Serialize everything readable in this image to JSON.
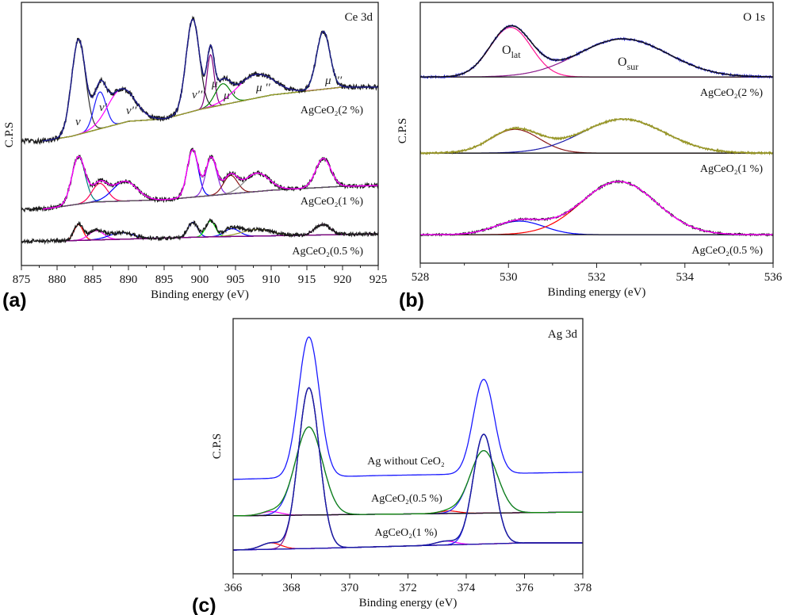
{
  "chart_data": [
    {
      "type": "line",
      "panel_label": "(a)",
      "title": "Ce 3d",
      "xlabel": "Binding energy (eV)",
      "ylabel": "C.P.S",
      "xlim": [
        875,
        925
      ],
      "xticks": [
        "875",
        "880",
        "885",
        "890",
        "895",
        "900",
        "905",
        "910",
        "915",
        "920",
        "925"
      ],
      "y_units": "arbitrary",
      "grid": false,
      "annotations": [
        {
          "text": "ν"
        },
        {
          "text": "ν′"
        },
        {
          "text": "ν′′"
        },
        {
          "text": "ν′′′"
        },
        {
          "text": "μ"
        },
        {
          "text": "μ ′"
        },
        {
          "text": "μ ′′"
        },
        {
          "text": "μ ′′′"
        }
      ],
      "spectra": [
        {
          "label": "AgCeO₂(2 %)",
          "data_color": "#1a1a1a",
          "envelope_color": "#1c1c8c",
          "background_color": "#9c9a2a",
          "noise": 0.9,
          "fit_range": [
            878,
            925
          ],
          "background": [
            [
              878,
              47.3
            ],
            [
              882,
              49.1
            ],
            [
              890,
              54.8
            ],
            [
              895,
              55.7
            ],
            [
              900,
              59.3
            ],
            [
              910,
              64.8
            ],
            [
              915,
              66.3
            ],
            [
              920,
              67.8
            ],
            [
              925,
              67.8
            ]
          ],
          "peaks": [
            {
              "center": 883.0,
              "height": 36,
              "fwhm": 2.3,
              "color": "#333333"
            },
            {
              "center": 886.0,
              "height": 14,
              "fwhm": 2.0,
              "color": "#1a1aff"
            },
            {
              "center": 889.0,
              "height": 13,
              "fwhm": 4.5,
              "color": "#ff00ff"
            },
            {
              "center": 899.0,
              "height": 35,
              "fwhm": 2.2,
              "color": "#222222"
            },
            {
              "center": 901.5,
              "height": 20,
              "fwhm": 1.2,
              "color": "#800080"
            },
            {
              "center": 903.2,
              "height": 8,
              "fwhm": 2.5,
              "color": "#008000"
            },
            {
              "center": 907.8,
              "height": 9,
              "fwhm": 6.0,
              "color": "#ff00ff"
            },
            {
              "center": 917.3,
              "height": 22,
              "fwhm": 2.2,
              "color": "#00cc00"
            }
          ]
        },
        {
          "label": "AgCeO₂(1 %)",
          "data_color": "#1a1a1a",
          "envelope_color": "#ff00ff",
          "background_color": "#555555",
          "noise": 0.8,
          "fit_range": [
            878,
            925
          ],
          "background": [
            [
              878,
              21.4
            ],
            [
              885,
              24.1
            ],
            [
              895,
              25.0
            ],
            [
              900,
              26.2
            ],
            [
              910,
              28.6
            ],
            [
              920,
              30.1
            ],
            [
              925,
              30.4
            ]
          ],
          "peaks": [
            {
              "center": 883.0,
              "height": 18,
              "fwhm": 2.2,
              "color": "#008080"
            },
            {
              "center": 886.0,
              "height": 7,
              "fwhm": 2.5,
              "color": "#ff0055"
            },
            {
              "center": 889.5,
              "height": 7.5,
              "fwhm": 4.0,
              "color": "#0000ff"
            },
            {
              "center": 899.0,
              "height": 18,
              "fwhm": 1.8,
              "color": "#0000ff"
            },
            {
              "center": 901.6,
              "height": 14.5,
              "fwhm": 1.8,
              "color": "#8a2be2"
            },
            {
              "center": 904.3,
              "height": 7,
              "fwhm": 2.3,
              "color": "#8b1a1a"
            },
            {
              "center": 908.0,
              "height": 7,
              "fwhm": 4.0,
              "color": "#888888"
            },
            {
              "center": 917.3,
              "height": 11,
              "fwhm": 2.5,
              "color": "#ff00ff"
            }
          ]
        },
        {
          "label": "AgCeO₂(0.5 %)",
          "data_color": "#1a1a1a",
          "envelope_color": "",
          "background_color": "#800080",
          "noise": 0.7,
          "fit_range": [
            880,
            925
          ],
          "background": [
            [
              880,
              9.3
            ],
            [
              900,
              10.8
            ],
            [
              925,
              12.0
            ]
          ],
          "peaks": [
            {
              "center": 883.0,
              "height": 6,
              "fwhm": 1.5,
              "color": "#ff0000"
            },
            {
              "center": 885.5,
              "height": 3.5,
              "fwhm": 2.5,
              "color": "#ff00ff"
            },
            {
              "center": 889.0,
              "height": 2.5,
              "fwhm": 4.0,
              "color": "#0000ff"
            },
            {
              "center": 899.0,
              "height": 5.7,
              "fwhm": 1.6,
              "color": "#0000ff"
            },
            {
              "center": 901.5,
              "height": 6,
              "fwhm": 1.6,
              "color": "#00ee00"
            },
            {
              "center": 904.5,
              "height": 3,
              "fwhm": 2.5,
              "color": "#0000ff"
            },
            {
              "center": 908.0,
              "height": 2.5,
              "fwhm": 5.0,
              "color": "#9c9a2a"
            },
            {
              "center": 917.2,
              "height": 4,
              "fwhm": 2.5,
              "color": "#800080"
            }
          ]
        }
      ]
    },
    {
      "type": "line",
      "panel_label": "(b)",
      "title": "O 1s",
      "xlabel": "Binding energy (eV)",
      "ylabel": "C.P.S",
      "xlim": [
        528,
        536
      ],
      "xticks": [
        "528",
        "530",
        "532",
        "534",
        "536"
      ],
      "y_units": "arbitrary",
      "grid": false,
      "annotations": [
        {
          "main": "O",
          "sub": "lat"
        },
        {
          "main": "O",
          "sub": "sur"
        }
      ],
      "spectra": [
        {
          "label": "AgCeO₂(2 %)",
          "data_color": "#1a1acc",
          "envelope_color": "#111111",
          "background_color": "#111111",
          "noise": 0.35,
          "fit_range": [
            528,
            536
          ],
          "background": [
            [
              528,
              71.4
            ],
            [
              536,
              71.4
            ]
          ],
          "peaks": [
            {
              "center": 530.05,
              "height": 19,
              "fwhm": 1.1,
              "color": "#ff1493"
            },
            {
              "center": 532.6,
              "height": 14.6,
              "fwhm": 2.4,
              "color": "#8b1a8b"
            }
          ]
        },
        {
          "label": "AgCeO₂(1 %)",
          "data_color": "#8a8a1a",
          "envelope_color": "#9c9a2a",
          "background_color": "#111111",
          "noise": 0.35,
          "fit_range": [
            528,
            536
          ],
          "background": [
            [
              528,
              42.2
            ],
            [
              536,
              42.2
            ]
          ],
          "peaks": [
            {
              "center": 530.15,
              "height": 9.1,
              "fwhm": 1.3,
              "color": "#8b1a1a"
            },
            {
              "center": 532.6,
              "height": 13,
              "fwhm": 2.2,
              "color": "#1a1aaa"
            }
          ]
        },
        {
          "label": "AgCeO₂(0.5 %)",
          "data_color": "#111111",
          "envelope_color": "#ff00ff",
          "background_color": "#111111",
          "noise": 0.35,
          "fit_range": [
            528,
            536
          ],
          "background": [
            [
              528,
              10.9
            ],
            [
              536,
              10.9
            ]
          ],
          "peaks": [
            {
              "center": 530.25,
              "height": 5.2,
              "fwhm": 1.3,
              "color": "#0000ff"
            },
            {
              "center": 532.5,
              "height": 20.4,
              "fwhm": 2.0,
              "color": "#ff0000"
            }
          ]
        }
      ]
    },
    {
      "type": "line",
      "panel_label": "(c)",
      "title": "Ag 3d",
      "xlabel": "Binding energy (eV)",
      "ylabel": "C.P.S",
      "xlim": [
        366,
        378
      ],
      "xticks": [
        "366",
        "368",
        "370",
        "372",
        "374",
        "376",
        "378"
      ],
      "y_units": "arbitrary",
      "grid": false,
      "annotations": [],
      "spectra": [
        {
          "label": "Ag without CeO₂",
          "data_color": "#1a1aff",
          "envelope_color": "",
          "background_color": "",
          "noise": 0,
          "fit_range": [
            366,
            378
          ],
          "background": [
            [
              366,
              37.0
            ],
            [
              371,
              38.5
            ],
            [
              378,
              39.8
            ]
          ],
          "peaks": [
            {
              "center": 368.6,
              "height": 55,
              "fwhm": 0.85,
              "color": ""
            },
            {
              "center": 374.6,
              "height": 37,
              "fwhm": 0.85,
              "color": ""
            }
          ]
        },
        {
          "label": "AgCeO₂(0.5 %)",
          "data_color": "#118811",
          "envelope_color": "",
          "background_color": "#111111",
          "noise": 0,
          "fit_range": [
            366,
            378
          ],
          "background": [
            [
              366,
              22.7
            ],
            [
              378,
              24.2
            ]
          ],
          "peaks": [
            {
              "center": 367.3,
              "height": 1.5,
              "fwhm": 0.8,
              "color": "#ff00ff"
            },
            {
              "center": 368.6,
              "height": 34.5,
              "fwhm": 1.1,
              "color": "#1a1aff"
            },
            {
              "center": 373.4,
              "height": 1.0,
              "fwhm": 0.8,
              "color": "#ff0000"
            },
            {
              "center": 374.6,
              "height": 24.5,
              "fwhm": 1.1,
              "color": "#1a1aff"
            }
          ]
        },
        {
          "label": "AgCeO₂(1 %)",
          "data_color": "#1a1a1a",
          "envelope_color": "#1a1aaa",
          "background_color": "#1a1aaa",
          "noise": 0,
          "fit_range": [
            366,
            378
          ],
          "background": [
            [
              366,
              9.3
            ],
            [
              369,
              10.0
            ],
            [
              376,
              12.1
            ],
            [
              378,
              12.1
            ]
          ],
          "peaks": [
            {
              "center": 367.3,
              "height": 2.5,
              "fwhm": 0.8,
              "color": "#ff0000"
            },
            {
              "center": 368.6,
              "height": 63,
              "fwhm": 0.85,
              "color": "#8b1a8b"
            },
            {
              "center": 373.3,
              "height": 1.5,
              "fwhm": 0.8,
              "color": "#ff00ff"
            },
            {
              "center": 374.6,
              "height": 43,
              "fwhm": 0.85,
              "color": "#1a1aff"
            }
          ]
        }
      ]
    }
  ]
}
